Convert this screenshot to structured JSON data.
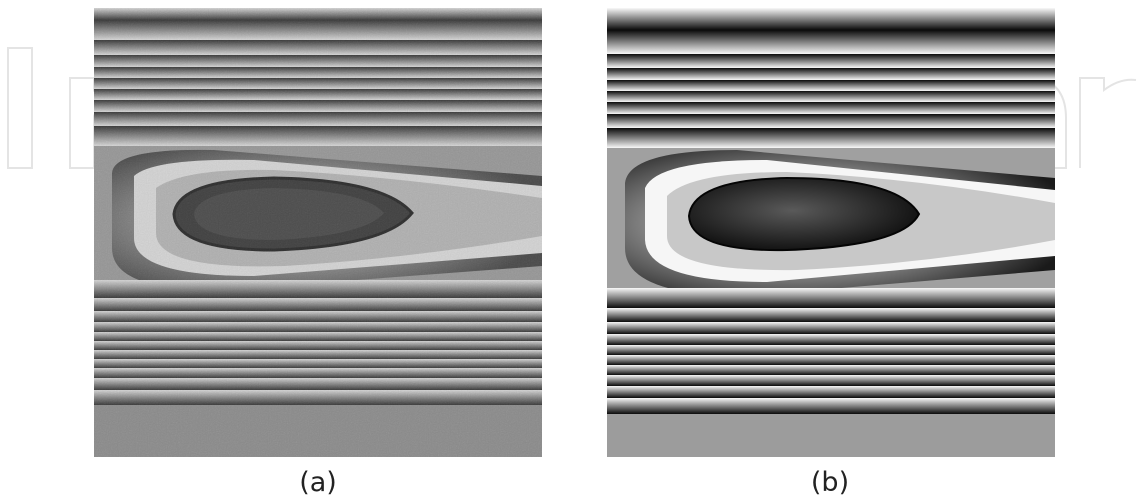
{
  "figure": {
    "panels": [
      {
        "id": "a",
        "caption": "(a)",
        "texture": "noisy-wrapped-phase"
      },
      {
        "id": "b",
        "caption": "(b)",
        "texture": "filtered-wrapped-phase"
      }
    ],
    "watermark_icon": "publisher-logo-outline",
    "colors": {
      "background": "#ffffff",
      "fringe_dark": "#000000",
      "fringe_light": "#ffffff",
      "caption": "#222222"
    }
  }
}
